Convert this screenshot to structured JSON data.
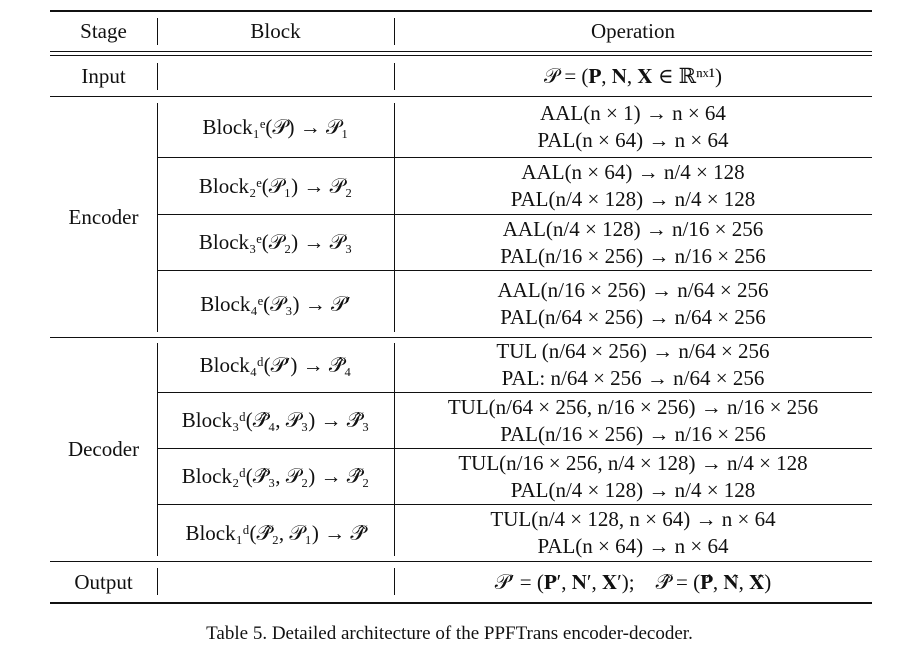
{
  "table": {
    "headers": {
      "stage": "Stage",
      "block": "Block",
      "operation": "Operation"
    },
    "input": {
      "stage": "Input",
      "block": "",
      "operation": "𝒫 = (𝐏, 𝐍, 𝐗 ∈ ℝⁿˣ¹)"
    },
    "encoder": {
      "stage": "Encoder",
      "rows": [
        {
          "block": "Block₁ᵉ(𝒫) → 𝒫₁",
          "op1": "AAL(n × 1) → n × 64",
          "op2": "PAL(n × 64) → n × 64"
        },
        {
          "block": "Block₂ᵉ(𝒫₁) → 𝒫₂",
          "op1": "AAL(n × 64) → n/4 × 128",
          "op2": "PAL(n/4 × 128) → n/4 × 128"
        },
        {
          "block": "Block₃ᵉ(𝒫₂) → 𝒫₃",
          "op1": "AAL(n/4 × 128) → n/16 × 256",
          "op2": "PAL(n/16 × 256) → n/16 × 256"
        },
        {
          "block": "Block₄ᵉ(𝒫₃) → 𝒫′",
          "op1": "AAL(n/16 × 256) → n/64 × 256",
          "op2": "PAL(n/64 × 256) → n/64 × 256"
        }
      ]
    },
    "decoder": {
      "stage": "Decoder",
      "rows": [
        {
          "block": "Block₄ᵈ(𝒫′) → 𝒫̂₄",
          "op1": "TUL (n/64 × 256) → n/64 × 256",
          "op2": "PAL: n/64 × 256 → n/64 × 256"
        },
        {
          "block": "Block₃ᵈ(𝒫̂₄, 𝒫₃) → 𝒫̂₃",
          "op1": "TUL(n/64 × 256, n/16 × 256) → n/16 × 256",
          "op2": "PAL(n/16 × 256) → n/16 × 256"
        },
        {
          "block": "Block₂ᵈ(𝒫̂₃, 𝒫₂) → 𝒫̂₂",
          "op1": "TUL(n/16 × 256, n/4 × 128) → n/4 × 128",
          "op2": "PAL(n/4 × 128) → n/4 × 128"
        },
        {
          "block": "Block₁ᵈ(𝒫̂₂, 𝒫₁) → 𝒫̂",
          "op1": "TUL(n/4 × 128, n × 64) → n × 64",
          "op2": "PAL(n × 64) → n × 64"
        }
      ]
    },
    "output": {
      "stage": "Output",
      "block": "",
      "operation": "𝒫′ = (𝐏′, 𝐍′, 𝐗′);    𝒫̂ = (𝐏̂, 𝐍̂, 𝐗̂)"
    }
  },
  "caption": "Table 5. Detailed architecture of the PPFTrans encoder-decoder."
}
